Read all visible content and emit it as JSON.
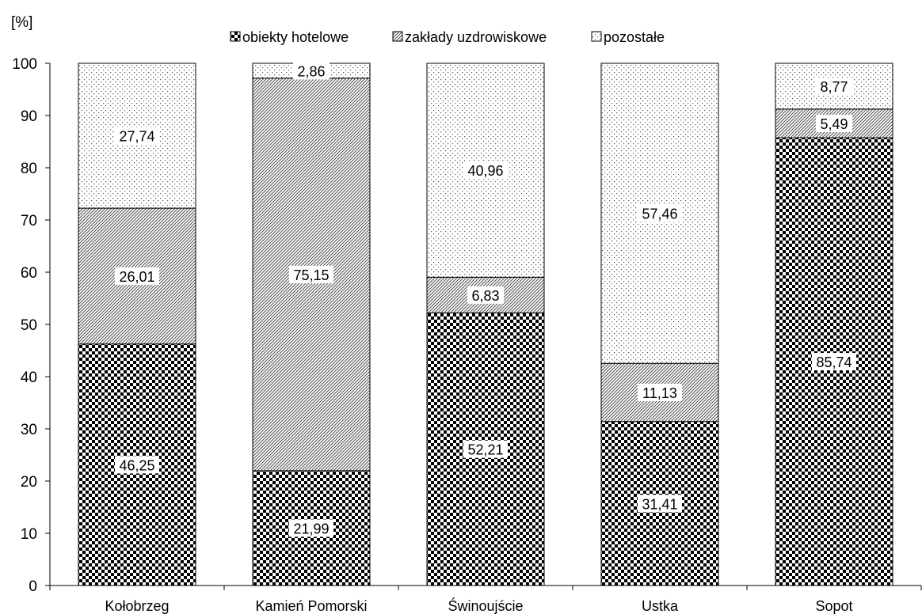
{
  "chart_data": {
    "type": "bar",
    "stacked": true,
    "y_unit_label": "[%]",
    "categories": [
      "Kołobrzeg",
      "Kamień Pomorski",
      "Świnoujście",
      "Ustka",
      "Sopot"
    ],
    "series": [
      {
        "name": "obiekty hotelowe",
        "pattern": "checker",
        "values": [
          46.25,
          21.99,
          52.21,
          31.41,
          85.74
        ],
        "labels": [
          "46,25",
          "21,99",
          "52,21",
          "31,41",
          "85,74"
        ]
      },
      {
        "name": "zakłady uzdrowiskowe",
        "pattern": "diagonal",
        "values": [
          26.01,
          75.15,
          6.83,
          11.13,
          5.49
        ],
        "labels": [
          "26,01",
          "75,15",
          "6,83",
          "11,13",
          "5,49"
        ]
      },
      {
        "name": "pozostałe",
        "pattern": "dots",
        "values": [
          27.74,
          2.86,
          40.96,
          57.46,
          8.77
        ],
        "labels": [
          "27,74",
          "2,86",
          "40,96",
          "57,46",
          "8,77"
        ]
      }
    ],
    "ylim": [
      0,
      100
    ],
    "yticks": [
      0,
      10,
      20,
      30,
      40,
      50,
      60,
      70,
      80,
      90,
      100
    ],
    "grid": false,
    "legend_position": "top"
  }
}
